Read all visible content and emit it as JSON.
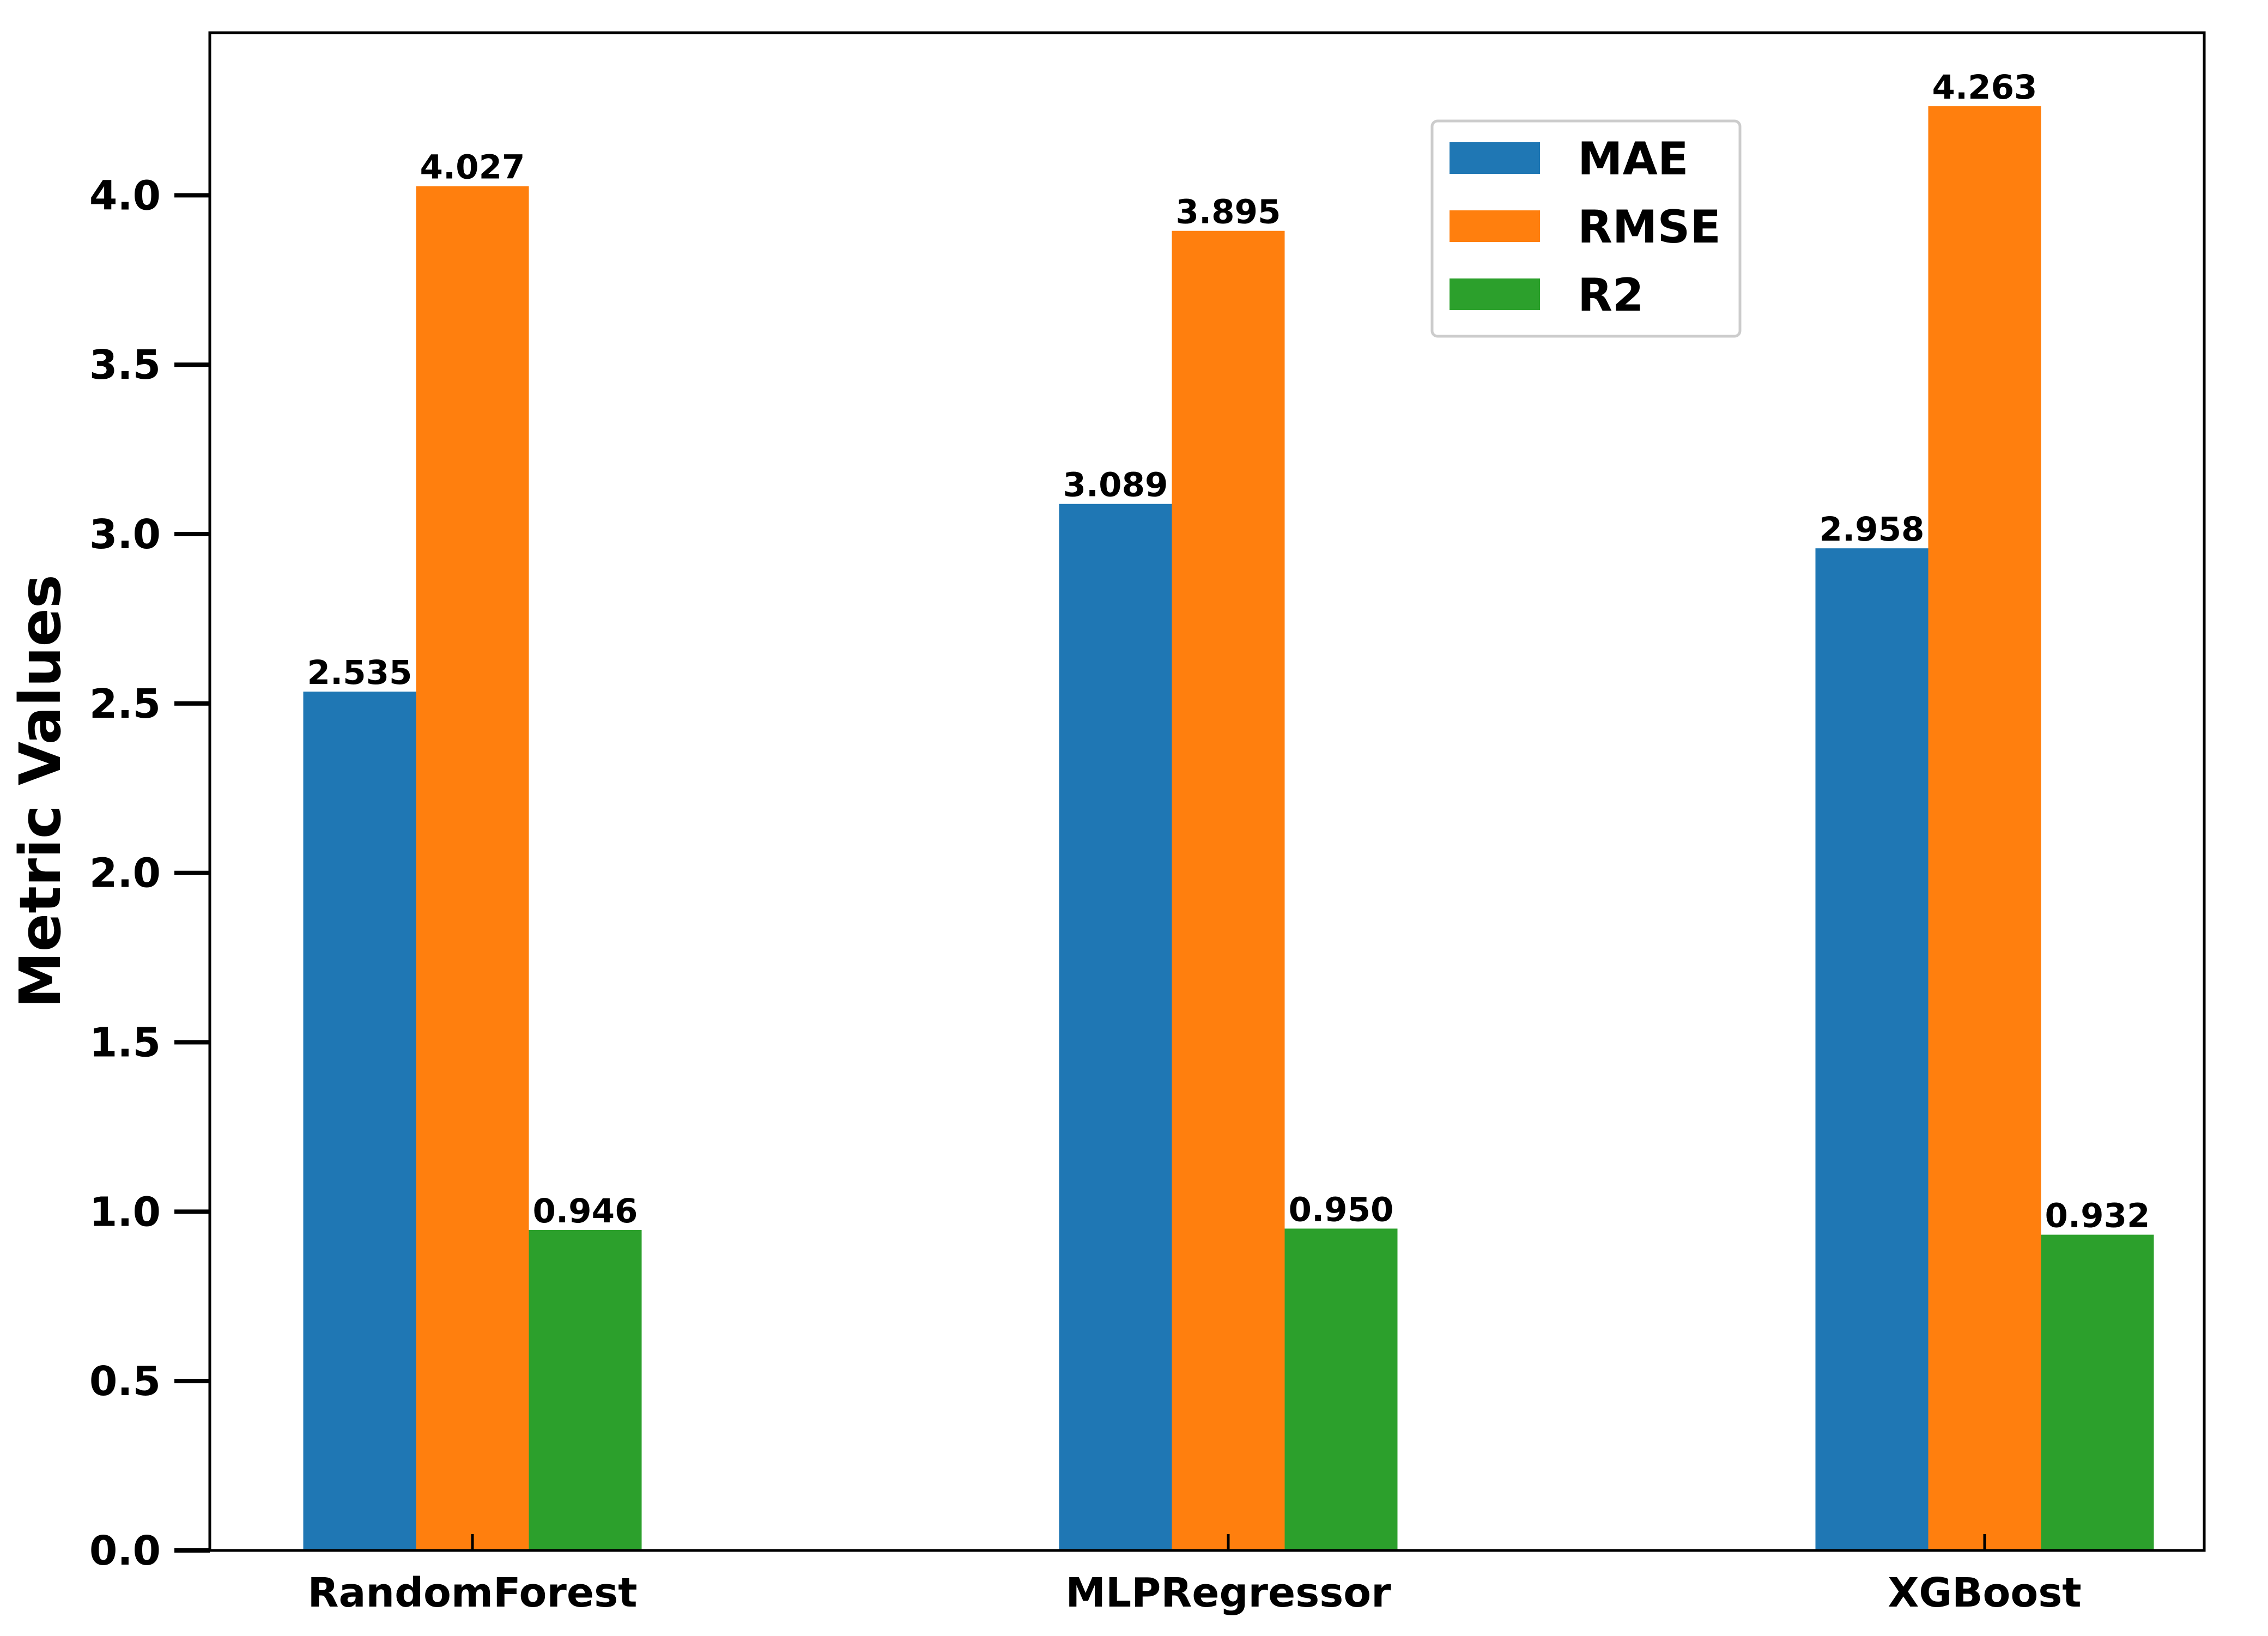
{
  "chart_data": {
    "type": "bar",
    "categories": [
      "RandomForest",
      "MLPRegressor",
      "XGBoost"
    ],
    "series": [
      {
        "name": "MAE",
        "color": "#1f77b4",
        "values": [
          2.535,
          3.089,
          2.958
        ],
        "labels": [
          "2.535",
          "3.089",
          "2.958"
        ]
      },
      {
        "name": "RMSE",
        "color": "#ff7f0e",
        "values": [
          4.027,
          3.895,
          4.263
        ],
        "labels": [
          "4.027",
          "3.895",
          "4.263"
        ]
      },
      {
        "name": "R2",
        "color": "#2ca02c",
        "values": [
          0.946,
          0.95,
          0.932
        ],
        "labels": [
          "0.946",
          "0.950",
          "0.932"
        ]
      }
    ],
    "ylabel": "Metric Values",
    "xlabel": "",
    "ylim": [
      0,
      4.48
    ],
    "yticks": [
      "0.0",
      "0.5",
      "1.0",
      "1.5",
      "2.0",
      "2.5",
      "3.0",
      "3.5",
      "4.0"
    ],
    "grid": false,
    "legend_position": "top-right"
  }
}
